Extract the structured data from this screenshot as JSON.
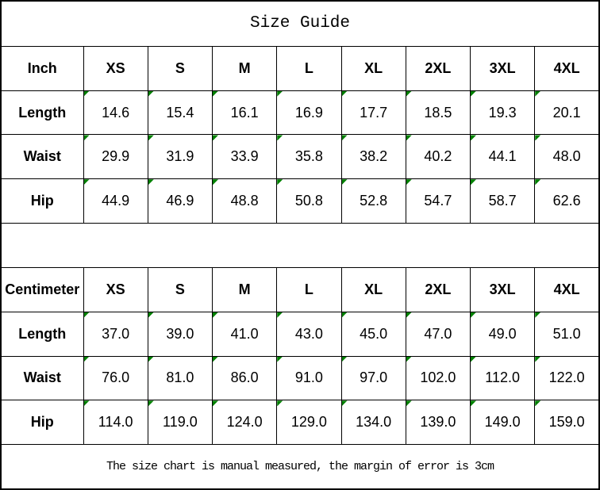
{
  "title": "Size Guide",
  "footer_note": "The size chart is manual measured, the margin of error is 3cm",
  "colors": {
    "border": "#000000",
    "background": "#ffffff",
    "text": "#000000",
    "error_indicator_green": "#008000"
  },
  "chart_data": [
    {
      "type": "table",
      "unit": "Inch",
      "header": [
        "Inch",
        "XS",
        "S",
        "M",
        "L",
        "XL",
        "2XL",
        "3XL",
        "4XL"
      ],
      "rows": [
        [
          "Length",
          "14.6",
          "15.4",
          "16.1",
          "16.9",
          "17.7",
          "18.5",
          "19.3",
          "20.1"
        ],
        [
          "Waist",
          "29.9",
          "31.9",
          "33.9",
          "35.8",
          "38.2",
          "40.2",
          "44.1",
          "48.0"
        ],
        [
          "Hip",
          "44.9",
          "46.9",
          "48.8",
          "50.8",
          "52.8",
          "54.7",
          "58.7",
          "62.6"
        ]
      ]
    },
    {
      "type": "table",
      "unit": "Centimeter",
      "header": [
        "Centimeter",
        "XS",
        "S",
        "M",
        "L",
        "XL",
        "2XL",
        "3XL",
        "4XL"
      ],
      "rows": [
        [
          "Length",
          "37.0",
          "39.0",
          "41.0",
          "43.0",
          "45.0",
          "47.0",
          "49.0",
          "51.0"
        ],
        [
          "Waist",
          "76.0",
          "81.0",
          "86.0",
          "91.0",
          "97.0",
          "102.0",
          "112.0",
          "122.0"
        ],
        [
          "Hip",
          "114.0",
          "119.0",
          "124.0",
          "129.0",
          "134.0",
          "139.0",
          "149.0",
          "159.0"
        ]
      ]
    }
  ]
}
